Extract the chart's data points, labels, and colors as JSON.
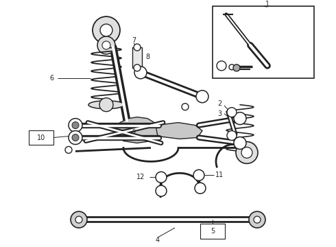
{
  "bg_color": "#ffffff",
  "dark_color": "#222222",
  "fig_width": 4.9,
  "fig_height": 3.6,
  "dpi": 100
}
